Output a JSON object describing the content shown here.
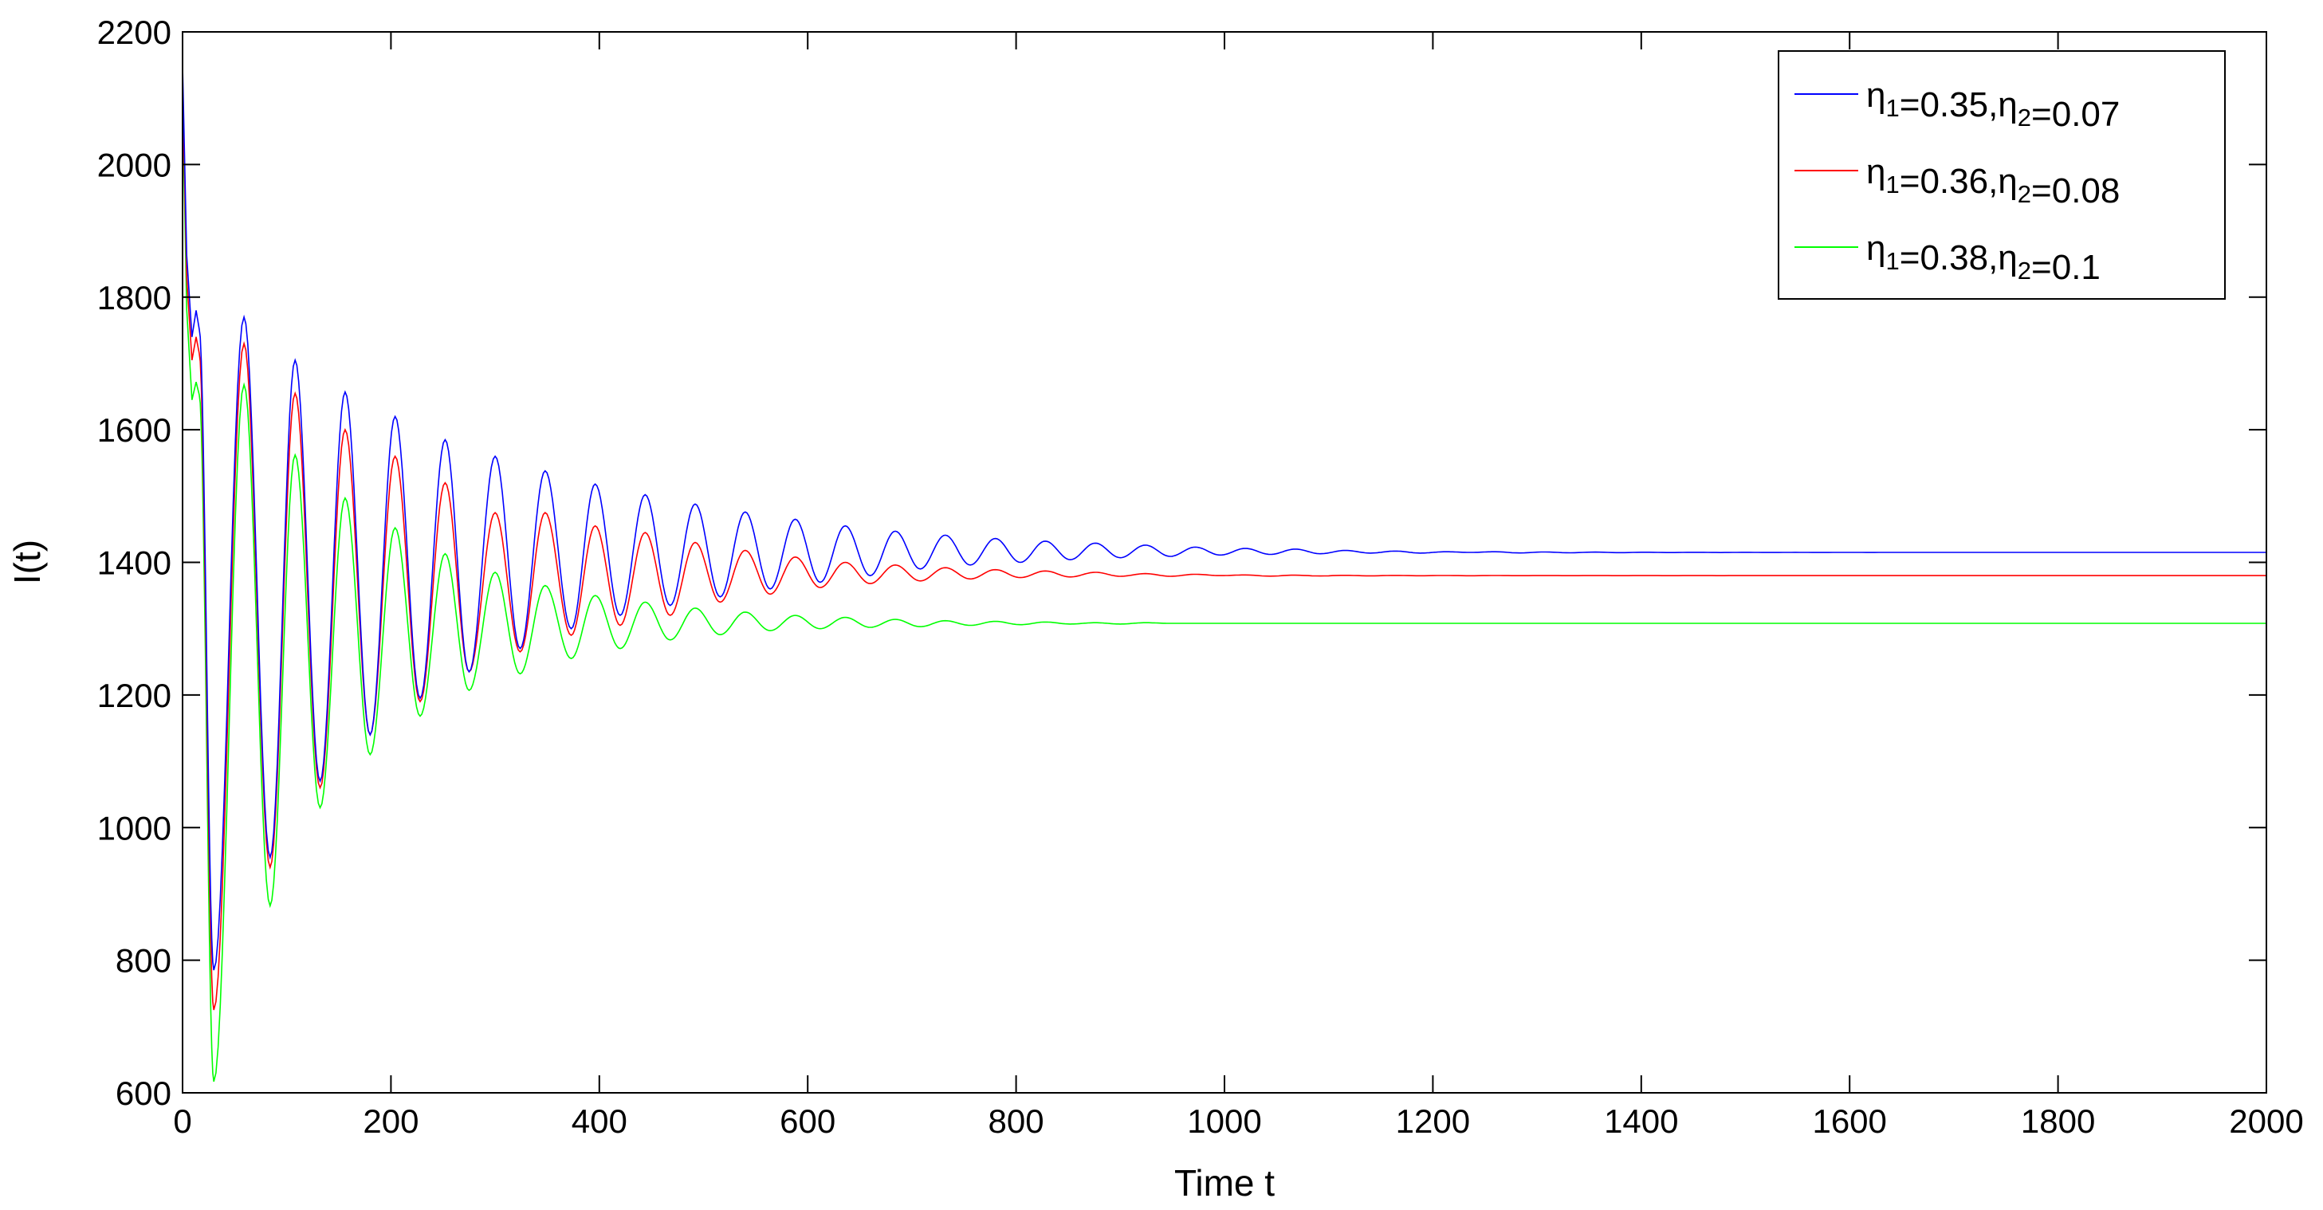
{
  "chart_data": {
    "type": "line",
    "title": "",
    "xlabel": "Time t",
    "ylabel": "I(t)",
    "xlim": [
      0,
      2000
    ],
    "ylim": [
      600,
      2200
    ],
    "x_ticks": [
      "0",
      "200",
      "400",
      "600",
      "800",
      "1000",
      "1200",
      "1400",
      "1600",
      "1800",
      "2000"
    ],
    "y_ticks": [
      "600",
      "800",
      "1000",
      "1200",
      "1400",
      "1600",
      "1800",
      "2000",
      "2200"
    ],
    "grid": false,
    "legend_position": "top-right",
    "series": [
      {
        "color": "#0000ff",
        "legend": {
          "eta1_value": "0.35",
          "eta2_value": "0.07"
        },
        "start": 2150,
        "early_trough": 1740,
        "early_peak": 1780,
        "equilibrium": 1415,
        "troughs": [
          [
            30,
            785
          ],
          [
            84,
            955
          ],
          [
            132,
            1070
          ],
          [
            180,
            1140
          ],
          [
            228,
            1195
          ],
          [
            275,
            1235
          ],
          [
            324,
            1270
          ],
          [
            373,
            1300
          ],
          [
            420,
            1320
          ],
          [
            468,
            1335
          ],
          [
            516,
            1348
          ],
          [
            564,
            1360
          ],
          [
            612,
            1370
          ],
          [
            660,
            1380
          ],
          [
            708,
            1390
          ],
          [
            756,
            1396
          ],
          [
            804,
            1400
          ],
          [
            852,
            1404
          ],
          [
            900,
            1407
          ],
          [
            948,
            1409
          ],
          [
            996,
            1411
          ],
          [
            1044,
            1412
          ],
          [
            1092,
            1413
          ],
          [
            1140,
            1414
          ],
          [
            1188,
            1414
          ],
          [
            1236,
            1415
          ]
        ],
        "peaks": [
          [
            59,
            1770
          ],
          [
            108,
            1705
          ],
          [
            156,
            1657
          ],
          [
            204,
            1620
          ],
          [
            252,
            1585
          ],
          [
            300,
            1560
          ],
          [
            348,
            1538
          ],
          [
            396,
            1518
          ],
          [
            444,
            1502
          ],
          [
            492,
            1488
          ],
          [
            540,
            1476
          ],
          [
            588,
            1465
          ],
          [
            636,
            1455
          ],
          [
            684,
            1447
          ],
          [
            732,
            1441
          ],
          [
            780,
            1436
          ],
          [
            828,
            1432
          ],
          [
            876,
            1429
          ],
          [
            924,
            1426
          ],
          [
            972,
            1423
          ],
          [
            1020,
            1421
          ],
          [
            1068,
            1420
          ],
          [
            1116,
            1418
          ],
          [
            1164,
            1417
          ],
          [
            1212,
            1416
          ],
          [
            1260,
            1416
          ]
        ]
      },
      {
        "color": "#ff0000",
        "legend": {
          "eta1_value": "0.36",
          "eta2_value": "0.08"
        },
        "start": 2120,
        "early_trough": 1705,
        "early_peak": 1740,
        "equilibrium": 1380,
        "troughs": [
          [
            30,
            725
          ],
          [
            84,
            940
          ],
          [
            132,
            1060
          ],
          [
            180,
            1140
          ],
          [
            228,
            1190
          ],
          [
            275,
            1235
          ],
          [
            324,
            1265
          ],
          [
            373,
            1290
          ],
          [
            420,
            1305
          ],
          [
            468,
            1320
          ],
          [
            516,
            1340
          ],
          [
            564,
            1352
          ],
          [
            612,
            1362
          ],
          [
            660,
            1368
          ],
          [
            708,
            1372
          ],
          [
            756,
            1375
          ],
          [
            804,
            1377
          ],
          [
            852,
            1378
          ],
          [
            900,
            1379
          ],
          [
            948,
            1379
          ],
          [
            996,
            1380
          ]
        ],
        "peaks": [
          [
            59,
            1730
          ],
          [
            108,
            1655
          ],
          [
            156,
            1600
          ],
          [
            204,
            1560
          ],
          [
            252,
            1520
          ],
          [
            300,
            1475
          ],
          [
            348,
            1475
          ],
          [
            396,
            1455
          ],
          [
            444,
            1445
          ],
          [
            492,
            1430
          ],
          [
            540,
            1418
          ],
          [
            588,
            1408
          ],
          [
            636,
            1400
          ],
          [
            684,
            1396
          ],
          [
            732,
            1392
          ],
          [
            780,
            1389
          ],
          [
            828,
            1387
          ],
          [
            876,
            1385
          ],
          [
            924,
            1383
          ],
          [
            972,
            1382
          ],
          [
            1020,
            1381
          ]
        ]
      },
      {
        "color": "#00ff00",
        "legend": {
          "eta1_value": "0.38",
          "eta2_value": "0.1"
        },
        "start": 2100,
        "early_trough": 1645,
        "early_peak": 1672,
        "equilibrium": 1308,
        "troughs": [
          [
            30,
            617
          ],
          [
            84,
            882
          ],
          [
            132,
            1030
          ],
          [
            180,
            1110
          ],
          [
            228,
            1168
          ],
          [
            275,
            1207
          ],
          [
            324,
            1232
          ],
          [
            373,
            1255
          ],
          [
            420,
            1270
          ],
          [
            468,
            1283
          ],
          [
            516,
            1291
          ],
          [
            564,
            1297
          ],
          [
            612,
            1300
          ],
          [
            660,
            1302
          ],
          [
            708,
            1303
          ],
          [
            756,
            1305
          ],
          [
            804,
            1306
          ],
          [
            852,
            1307
          ],
          [
            900,
            1307
          ],
          [
            948,
            1308
          ]
        ],
        "peaks": [
          [
            59,
            1668
          ],
          [
            108,
            1562
          ],
          [
            156,
            1497
          ],
          [
            204,
            1452
          ],
          [
            252,
            1413
          ],
          [
            300,
            1385
          ],
          [
            348,
            1365
          ],
          [
            396,
            1350
          ],
          [
            444,
            1340
          ],
          [
            492,
            1331
          ],
          [
            540,
            1325
          ],
          [
            588,
            1320
          ],
          [
            636,
            1317
          ],
          [
            684,
            1314
          ],
          [
            732,
            1312
          ],
          [
            780,
            1311
          ],
          [
            828,
            1310
          ],
          [
            876,
            1309
          ],
          [
            924,
            1309
          ],
          [
            972,
            1308
          ]
        ]
      }
    ]
  }
}
